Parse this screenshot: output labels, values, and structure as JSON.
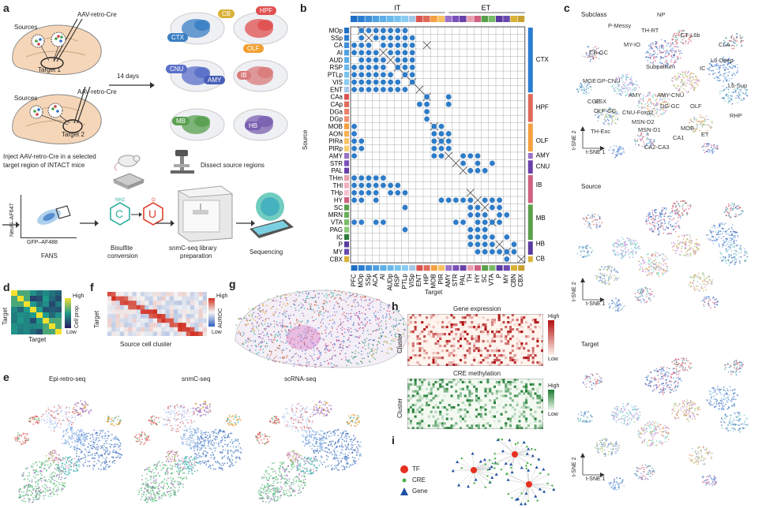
{
  "panel_letters": {
    "a": "a",
    "b": "b",
    "c": "c",
    "d": "d",
    "e": "e",
    "f": "f",
    "g": "g",
    "h": "h",
    "i": "i"
  },
  "panel_a": {
    "virus_label_1": "AAV-retro-Cre",
    "virus_label_2": "AAV-retro-Cre",
    "sources_1": "Sources",
    "sources_2": "Sources",
    "target_1": "Target 1",
    "target_2": "Target 2",
    "inject_text_1": "Inject AAV-retro-Cre in a selected",
    "inject_text_2": "target region of INTACT mice",
    "days_label": "14 days",
    "dissect_label": "Dissect source regions",
    "regions": [
      {
        "label": "CB",
        "color": "#d9b236"
      },
      {
        "label": "HPF",
        "color": "#e05050"
      },
      {
        "label": "CTX",
        "color": "#3b7fc4"
      },
      {
        "label": "OLF",
        "color": "#f0a030"
      },
      {
        "label": "CNU",
        "color": "#5a6fc8"
      },
      {
        "label": "AMY",
        "color": "#4a5fb8"
      },
      {
        "label": "IB",
        "color": "#d97b7b"
      },
      {
        "label": "MB",
        "color": "#5aa050"
      },
      {
        "label": "HB",
        "color": "#7a60b0"
      }
    ],
    "fans_y_label": "NeuN–AF647",
    "fans_x_label": "GFP–AF488",
    "fans_caption": "FANS",
    "bisulfite_caption_1": "Bisulfite",
    "bisulfite_caption_2": "conversion",
    "library_caption_1": "snmC-seq library",
    "library_caption_2": "preparation",
    "sequencing_caption": "Sequencing"
  },
  "panel_b": {
    "it_label": "IT",
    "et_label": "ET",
    "y_axis": "Source",
    "x_axis": "Target",
    "sources": [
      "MOp",
      "SSp",
      "CA",
      "AI",
      "AUD",
      "RSP",
      "PTLp",
      "VIS",
      "ENT",
      "CAa",
      "CAp",
      "DGa",
      "DGp",
      "MOB",
      "AON",
      "PIRa",
      "PIRp",
      "AMY",
      "STR",
      "PAL",
      "THm",
      "THl",
      "THp",
      "HY",
      "SC",
      "MRN",
      "VTA",
      "PAG",
      "IC",
      "P",
      "MY",
      "CBX"
    ],
    "targets": [
      "PFC",
      "MOp",
      "SSp",
      "ACA",
      "AI",
      "AUDp",
      "RSP",
      "PTLp",
      "VISp",
      "ENT",
      "HIP",
      "MOB",
      "PIR",
      "AMY",
      "STR",
      "PAL",
      "TH",
      "HY",
      "SC",
      "VTA",
      "P",
      "MY",
      "CBN",
      "CBX"
    ],
    "source_group_labels": [
      {
        "label": "CTX",
        "row": 4
      },
      {
        "label": "HPF",
        "row": 10.5
      },
      {
        "label": "OLF",
        "row": 15
      },
      {
        "label": "AMY",
        "row": 17
      },
      {
        "label": "CNU",
        "row": 18.5
      },
      {
        "label": "IB",
        "row": 21
      },
      {
        "label": "MB",
        "row": 25.5
      },
      {
        "label": "HB",
        "row": 29
      },
      {
        "label": "CB",
        "row": 31
      }
    ],
    "row_colors": [
      "#1f6fc4",
      "#2a7dd0",
      "#3e8fd8",
      "#4fa0e0",
      "#5caee6",
      "#6ab8ea",
      "#78c2ee",
      "#88ccf2",
      "#a6c8e8",
      "#d9534f",
      "#e06a5a",
      "#e8806a",
      "#f09070",
      "#f5a040",
      "#f8b050",
      "#f8c060",
      "#f8d070",
      "#9a72c8",
      "#7a50b8",
      "#6a40a8",
      "#e8a0b0",
      "#f0b0c0",
      "#f8c0d0",
      "#d06080",
      "#5aa04a",
      "#68ae58",
      "#78bc68",
      "#88ca78",
      "#2e7a3a",
      "#5a3aa0",
      "#6a4ab0",
      "#d9b236"
    ],
    "col_colors": [
      "#1f6fc4",
      "#2a7dd0",
      "#3e8fd8",
      "#4fa0e0",
      "#5caee6",
      "#6ab8ea",
      "#78c2ee",
      "#88ccf2",
      "#a6c8e8",
      "#d9534f",
      "#e06a5a",
      "#f5a040",
      "#f8c060",
      "#9a72c8",
      "#7a50b8",
      "#6a40a8",
      "#e8a0b0",
      "#d06080",
      "#5aa04a",
      "#78bc68",
      "#5a3aa0",
      "#6a4ab0",
      "#d9b236",
      "#c8a030"
    ],
    "top_bar_colors": [
      "#1f6fc4",
      "#2a7dd0",
      "#3e8fd8",
      "#4fa0e0",
      "#5caee6",
      "#6ab8ea",
      "#78c2ee",
      "#88ccf2",
      "#a6c8e8",
      "#d9534f",
      "#e06a5a",
      "#f5a040",
      "#f8c060",
      "#9a72c8",
      "#7a50b8",
      "#6a40a8",
      "#e8a0b0",
      "#d06080",
      "#5aa04a",
      "#78bc68",
      "#5a3aa0",
      "#6a4ab0",
      "#d9b236",
      "#c8a030"
    ],
    "dots": [
      [
        0,
        [
          1,
          2,
          3,
          4,
          5,
          6,
          7
        ]
      ],
      [
        1,
        [
          1,
          3,
          4,
          5,
          6,
          7,
          8
        ]
      ],
      [
        2,
        [
          0,
          1,
          2,
          4,
          5,
          6,
          7,
          8
        ]
      ],
      [
        3,
        [
          0,
          1,
          2,
          3,
          5,
          6,
          7,
          8
        ]
      ],
      [
        4,
        [
          1,
          2,
          3,
          4,
          6,
          7,
          8
        ]
      ],
      [
        5,
        [
          0,
          1,
          2,
          3,
          4,
          6,
          7,
          8
        ]
      ],
      [
        6,
        [
          0,
          1,
          2,
          3,
          4,
          5,
          7,
          8
        ]
      ],
      [
        7,
        [
          0,
          1,
          2,
          3,
          4,
          5,
          6,
          8
        ]
      ],
      [
        8,
        [
          0,
          1,
          2,
          3,
          4,
          5,
          6,
          7
        ]
      ],
      [
        9,
        [
          10,
          13
        ]
      ],
      [
        10,
        [
          9,
          10,
          13
        ]
      ],
      [
        11,
        [
          10
        ]
      ],
      [
        12,
        [
          10
        ]
      ],
      [
        13,
        [
          0,
          11,
          12
        ]
      ],
      [
        14,
        [
          0,
          11,
          12,
          13
        ]
      ],
      [
        15,
        [
          0,
          1,
          11,
          12,
          13
        ]
      ],
      [
        16,
        [
          0,
          1,
          11,
          12,
          13
        ]
      ],
      [
        17,
        [
          0,
          11,
          12,
          15,
          16,
          17
        ]
      ],
      [
        18,
        [
          15,
          17,
          19
        ]
      ],
      [
        19,
        [
          16,
          17,
          18
        ]
      ],
      [
        20,
        [
          0,
          1,
          2,
          3,
          4
        ]
      ],
      [
        21,
        [
          0,
          1,
          2,
          3,
          4,
          5,
          6
        ]
      ],
      [
        22,
        [
          0,
          1,
          2,
          3,
          5,
          6,
          7
        ]
      ],
      [
        23,
        [
          0,
          1,
          3,
          12,
          13,
          14,
          15,
          16,
          18,
          19,
          20
        ]
      ],
      [
        24,
        [
          7,
          16,
          17,
          19,
          20
        ]
      ],
      [
        25,
        [
          16,
          17,
          18,
          20,
          21
        ]
      ],
      [
        26,
        [
          0,
          1,
          3,
          4,
          14,
          15,
          17,
          18,
          19,
          20
        ]
      ],
      [
        27,
        [
          7,
          16,
          17,
          18
        ]
      ],
      [
        28,
        [
          16,
          17,
          18,
          19,
          21
        ]
      ],
      [
        29,
        [
          16,
          17,
          18,
          19,
          22
        ]
      ],
      [
        30,
        [
          17,
          18,
          19,
          20,
          21,
          22
        ]
      ],
      [
        31,
        [
          21
        ]
      ]
    ],
    "crosses": [
      [
        0,
        1
      ],
      [
        1,
        2
      ],
      [
        2,
        10
      ],
      [
        3,
        4
      ],
      [
        4,
        5
      ],
      [
        5,
        6
      ],
      [
        6,
        7
      ],
      [
        7,
        8
      ],
      [
        8,
        9
      ],
      [
        9,
        10
      ],
      [
        13,
        11
      ],
      [
        15,
        12
      ],
      [
        17,
        13
      ],
      [
        18,
        14
      ],
      [
        19,
        15
      ],
      [
        22,
        16
      ],
      [
        23,
        17
      ],
      [
        24,
        18
      ],
      [
        26,
        19
      ],
      [
        29,
        20
      ],
      [
        30,
        21
      ],
      [
        31,
        23
      ]
    ]
  },
  "panel_c": {
    "subclass_title": "Subclass",
    "source_title": "Source",
    "target_title": "Target",
    "axis_y": "t-SNE 2",
    "axis_x": "t-SNE 1",
    "cluster_labels": [
      {
        "text": "NP"
      },
      {
        "text": "P-Messy"
      },
      {
        "text": "TH-RT"
      },
      {
        "text": "CT-L6b"
      },
      {
        "text": "MY-IO"
      },
      {
        "text": "CLA"
      },
      {
        "text": "CB-GC"
      },
      {
        "text": "L6-Deep"
      },
      {
        "text": "Subpallium"
      },
      {
        "text": "IC"
      },
      {
        "text": "GP-CNU"
      },
      {
        "text": "MGE"
      },
      {
        "text": "L6-Sup"
      },
      {
        "text": "AMY"
      },
      {
        "text": "AMY-CNU"
      },
      {
        "text": "CGE"
      },
      {
        "text": "LSX"
      },
      {
        "text": "DG-GC"
      },
      {
        "text": "OLF"
      },
      {
        "text": "OLF-GC"
      },
      {
        "text": "CNU-Foxp2"
      },
      {
        "text": "MSN-D2"
      },
      {
        "text": "RHP"
      },
      {
        "text": "TH-Exc"
      },
      {
        "text": "MSN-D1"
      },
      {
        "text": "MOB"
      },
      {
        "text": "CA1"
      },
      {
        "text": "ET"
      },
      {
        "text": "CA2-CA3"
      }
    ]
  },
  "panel_d": {
    "y_label": "Target",
    "x_label": "Target",
    "legend_high": "High",
    "legend_low": "Low",
    "legend_title": "Cell prop."
  },
  "panel_f": {
    "y_label": "Target",
    "x_label": "Source cell cluster",
    "legend_high": "High",
    "legend_low": "Low",
    "legend_title": "AUROC"
  },
  "panel_e": {
    "titles": [
      "Epi-retro-seq",
      "snmC-seq",
      "scRNA-seq"
    ]
  },
  "panel_h": {
    "gene_title": "Gene expression",
    "cre_title": "CRE methylation",
    "y_label": "Cluster",
    "high": "High",
    "low": "Low"
  },
  "panel_i": {
    "legend": [
      {
        "label": "TF",
        "color": "#e63020",
        "shape": "circle"
      },
      {
        "label": "CRE",
        "color": "#4ab04a",
        "shape": "dot"
      },
      {
        "label": "Gene",
        "color": "#2050a0",
        "shape": "triangle"
      }
    ]
  }
}
